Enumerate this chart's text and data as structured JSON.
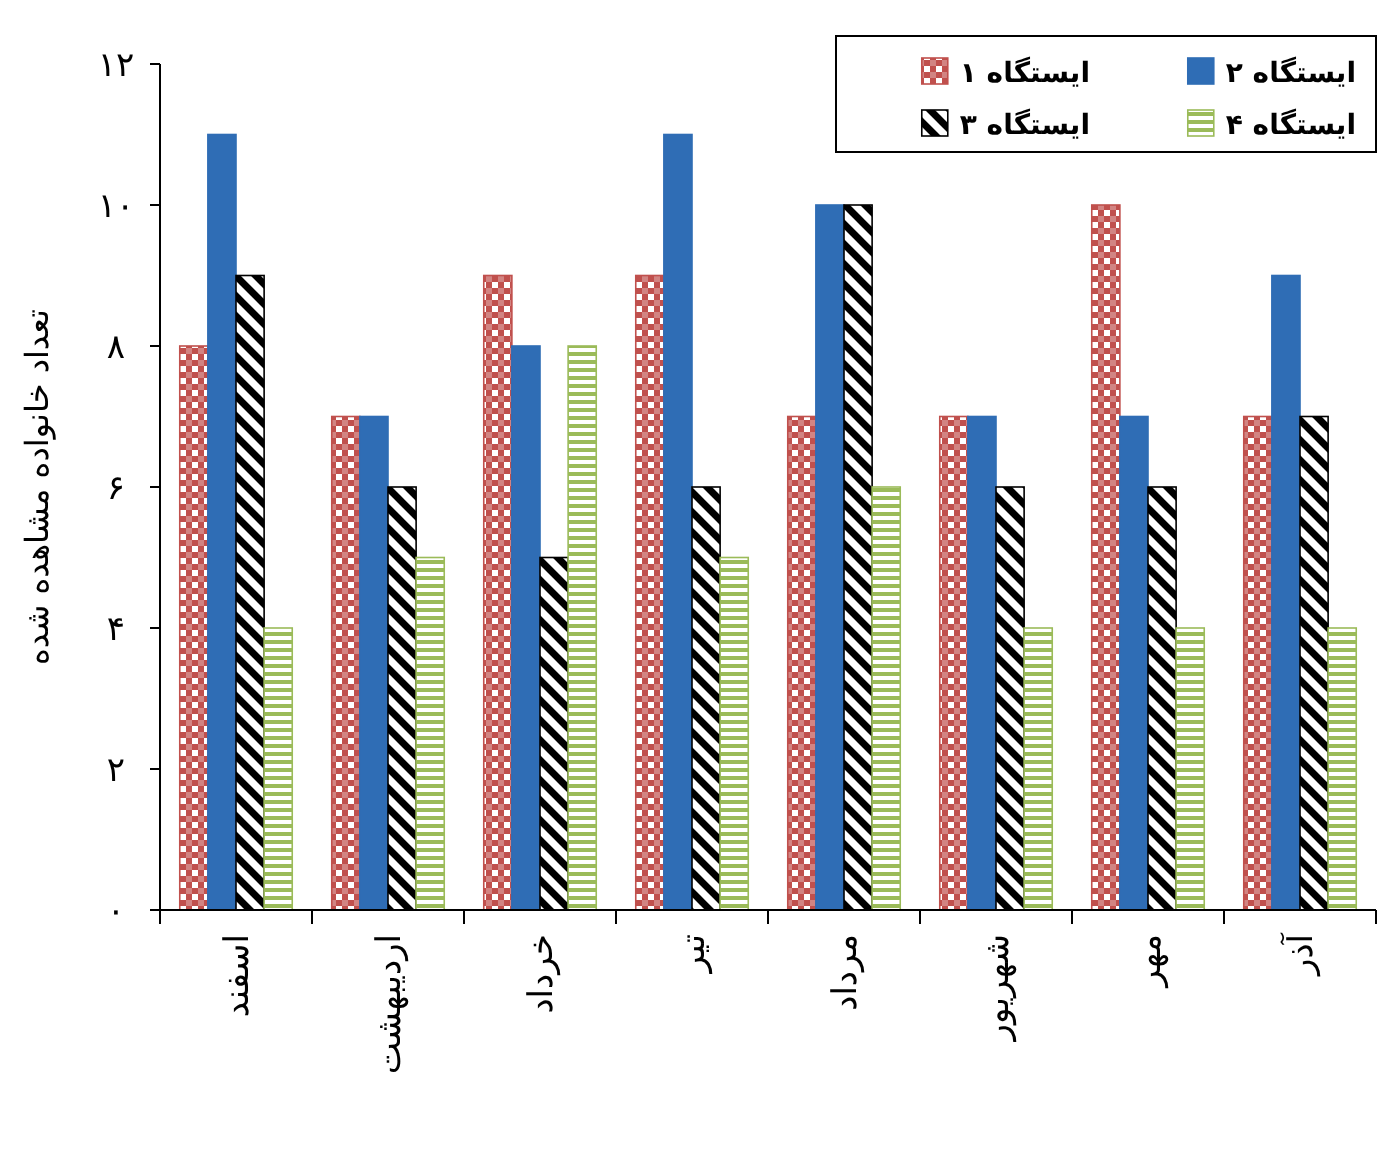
{
  "chart_data": {
    "type": "bar",
    "ylabel": "تعداد خانواده مشاهده شده",
    "categories": [
      "اسفند",
      "اردیبهشت",
      "خرداد",
      "تیر",
      "مرداد",
      "شهریور",
      "مهر",
      "آذر"
    ],
    "series": [
      {
        "name": "ایستگاه ۱",
        "color": "#c0504d",
        "values": [
          8,
          7,
          9,
          9,
          7,
          7,
          10,
          7
        ]
      },
      {
        "name": "ایستگاه ۲",
        "color": "#2f6db5",
        "values": [
          11,
          7,
          8,
          11,
          10,
          7,
          7,
          9
        ]
      },
      {
        "name": "ایستگاه ۳",
        "color": "#000000",
        "values": [
          9,
          6,
          5,
          6,
          10,
          6,
          6,
          7
        ]
      },
      {
        "name": "ایستگاه ۴",
        "color": "#9bbb59",
        "values": [
          4,
          5,
          8,
          5,
          6,
          4,
          4,
          4
        ]
      }
    ],
    "ylim": [
      0,
      12
    ],
    "yticks": [
      {
        "value": 0,
        "label": "۰"
      },
      {
        "value": 2,
        "label": "۲"
      },
      {
        "value": 4,
        "label": "۴"
      },
      {
        "value": 6,
        "label": "۶"
      },
      {
        "value": 8,
        "label": "۸"
      },
      {
        "value": 10,
        "label": "۱۰"
      },
      {
        "value": 12,
        "label": "۱۲"
      }
    ],
    "grid": false,
    "legend": "top right"
  }
}
